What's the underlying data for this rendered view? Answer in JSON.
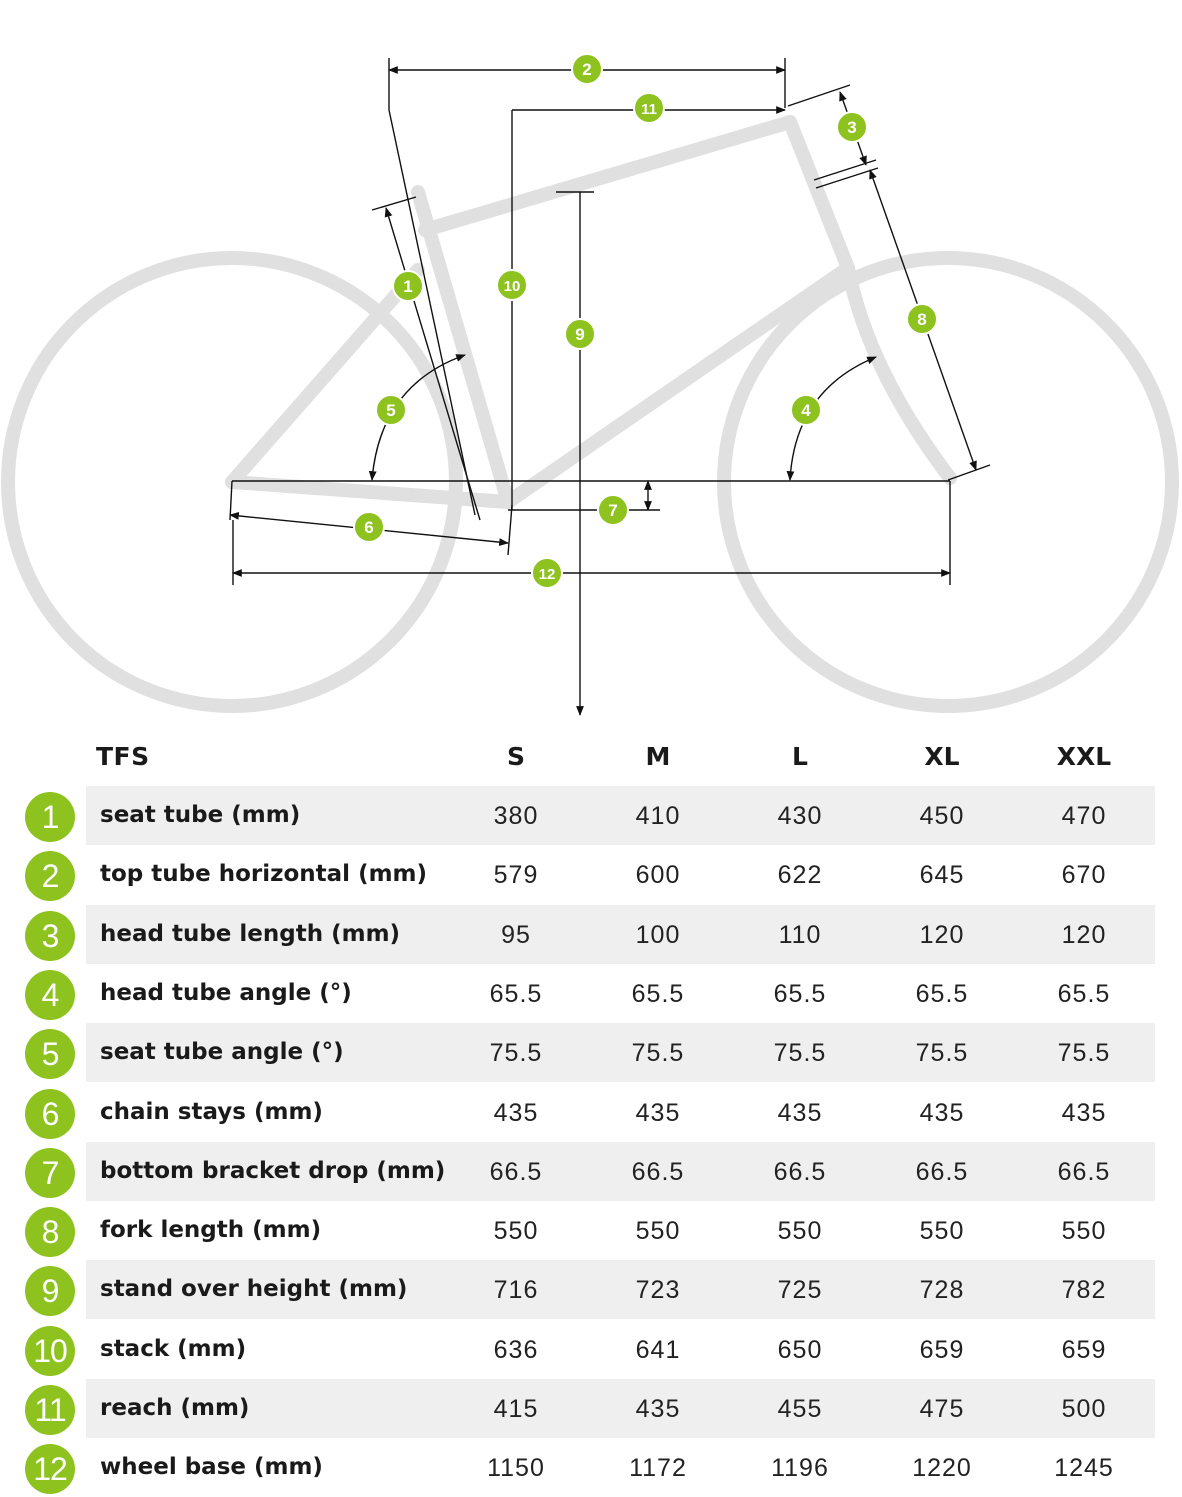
{
  "colors": {
    "accent": "#8dc21f",
    "frame": "#e0e0e0",
    "row_shade": "#efefef",
    "dimension_line": "#111111"
  },
  "diagram": {
    "markers": [
      "1",
      "2",
      "3",
      "4",
      "5",
      "6",
      "7",
      "8",
      "9",
      "10",
      "11",
      "12"
    ]
  },
  "table": {
    "model": "TFS",
    "sizes": [
      "S",
      "M",
      "L",
      "XL",
      "XXL"
    ],
    "rows": [
      {
        "num": "1",
        "label": "seat tube (mm)",
        "values": [
          "380",
          "410",
          "430",
          "450",
          "470"
        ]
      },
      {
        "num": "2",
        "label": "top tube horizontal (mm)",
        "values": [
          "579",
          "600",
          "622",
          "645",
          "670"
        ]
      },
      {
        "num": "3",
        "label": "head tube length (mm)",
        "values": [
          "95",
          "100",
          "110",
          "120",
          "120"
        ]
      },
      {
        "num": "4",
        "label": "head tube angle (°)",
        "values": [
          "65.5",
          "65.5",
          "65.5",
          "65.5",
          "65.5"
        ]
      },
      {
        "num": "5",
        "label": "seat tube angle (°)",
        "values": [
          "75.5",
          "75.5",
          "75.5",
          "75.5",
          "75.5"
        ]
      },
      {
        "num": "6",
        "label": "chain stays (mm)",
        "values": [
          "435",
          "435",
          "435",
          "435",
          "435"
        ]
      },
      {
        "num": "7",
        "label": "bottom bracket drop (mm)",
        "values": [
          "66.5",
          "66.5",
          "66.5",
          "66.5",
          "66.5"
        ]
      },
      {
        "num": "8",
        "label": "fork length (mm)",
        "values": [
          "550",
          "550",
          "550",
          "550",
          "550"
        ]
      },
      {
        "num": "9",
        "label": "stand over height (mm)",
        "values": [
          "716",
          "723",
          "725",
          "728",
          "782"
        ]
      },
      {
        "num": "10",
        "label": "stack (mm)",
        "values": [
          "636",
          "641",
          "650",
          "659",
          "659"
        ]
      },
      {
        "num": "11",
        "label": "reach (mm)",
        "values": [
          "415",
          "435",
          "455",
          "475",
          "500"
        ]
      },
      {
        "num": "12",
        "label": "wheel base (mm)",
        "values": [
          "1150",
          "1172",
          "1196",
          "1220",
          "1245"
        ]
      }
    ]
  }
}
